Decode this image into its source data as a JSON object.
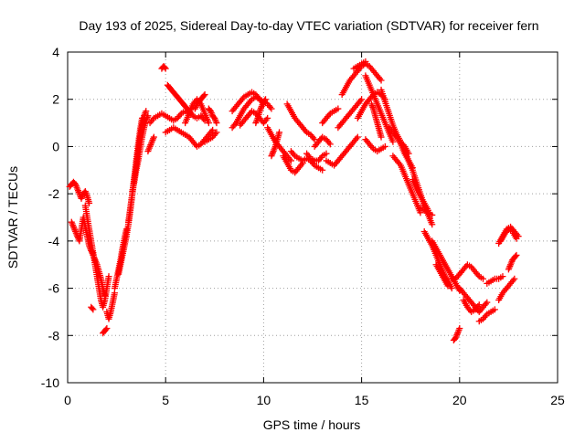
{
  "chart_data": {
    "type": "scatter",
    "title": "Day 193 of 2025, Sidereal Day-to-day VTEC variation (SDTVAR) for receiver fern",
    "xlabel": "GPS time / hours",
    "ylabel": "SDTVAR / TECUs",
    "xlim": [
      0,
      25
    ],
    "ylim": [
      -10,
      4
    ],
    "xticks": [
      "0",
      "5",
      "10",
      "15",
      "20",
      "25"
    ],
    "yticks": [
      "-10",
      "-8",
      "-6",
      "-4",
      "-2",
      "0",
      "2",
      "4"
    ],
    "grid": true,
    "marker": "plus",
    "colors": {
      "series": "#ff0000",
      "grid": "#a0a0a0",
      "axis": "#000000"
    },
    "segments": [
      {
        "x": [
          0.1,
          0.2,
          0.3,
          0.4,
          0.5,
          0.6,
          0.7,
          0.8,
          0.9,
          1.0,
          1.1
        ],
        "y": [
          -1.7,
          -1.6,
          -1.5,
          -1.6,
          -1.8,
          -2.0,
          -2.2,
          -2.0,
          -1.9,
          -2.1,
          -2.4
        ]
      },
      {
        "x": [
          0.2,
          0.3,
          0.4,
          0.5,
          0.6,
          0.7,
          0.8,
          0.9,
          1.0,
          1.1,
          1.2,
          1.3
        ],
        "y": [
          -3.2,
          -3.4,
          -3.6,
          -3.8,
          -4.0,
          -3.5,
          -3.0,
          -3.4,
          -3.8,
          -4.2,
          -4.4,
          -4.5
        ]
      },
      {
        "x": [
          0.9,
          1.0,
          1.1,
          1.2,
          1.3,
          1.4,
          1.5,
          1.6,
          1.7,
          1.8,
          1.9,
          2.0,
          2.1
        ],
        "y": [
          -2.5,
          -3.0,
          -3.5,
          -4.0,
          -4.5,
          -5.0,
          -5.5,
          -6.0,
          -6.5,
          -6.8,
          -6.5,
          -6.0,
          -5.5
        ]
      },
      {
        "x": [
          1.2,
          1.3,
          1.4,
          1.5,
          1.6,
          1.7,
          1.8,
          1.9
        ],
        "y": [
          -4.4,
          -4.6,
          -4.8,
          -5.0,
          -5.3,
          -5.6,
          -6.0,
          -6.3
        ]
      },
      {
        "x": [
          1.2,
          1.3
        ],
        "y": [
          -6.8,
          -6.9
        ]
      },
      {
        "x": [
          1.8,
          1.9,
          2.0
        ],
        "y": [
          -7.9,
          -7.8,
          -7.7
        ]
      },
      {
        "x": [
          2.0,
          2.1,
          2.2,
          2.3,
          2.4
        ],
        "y": [
          -7.0,
          -7.3,
          -7.0,
          -6.6,
          -6.2
        ]
      },
      {
        "x": [
          2.4,
          2.5,
          2.6,
          2.7,
          2.8,
          2.9,
          3.0
        ],
        "y": [
          -6.0,
          -5.6,
          -5.2,
          -4.8,
          -4.3,
          -3.9,
          -3.5
        ]
      },
      {
        "x": [
          2.6,
          2.7,
          2.8,
          2.9,
          3.0,
          3.1,
          3.2,
          3.3,
          3.4,
          3.5,
          3.6,
          3.7,
          3.8
        ],
        "y": [
          -5.4,
          -5.0,
          -4.6,
          -4.2,
          -3.8,
          -3.3,
          -2.7,
          -2.0,
          -1.3,
          -0.6,
          0.1,
          0.7,
          1.2
        ]
      },
      {
        "x": [
          3.1,
          3.2,
          3.3,
          3.4,
          3.5,
          3.6,
          3.7,
          3.8,
          3.9,
          4.0
        ],
        "y": [
          -3.2,
          -2.6,
          -2.0,
          -1.4,
          -0.8,
          -0.2,
          0.4,
          0.9,
          1.3,
          1.5
        ]
      },
      {
        "x": [
          3.3,
          3.4,
          3.5,
          3.6,
          3.7,
          3.8,
          3.9,
          4.0,
          4.1
        ],
        "y": [
          -1.9,
          -1.5,
          -1.0,
          -0.6,
          -0.1,
          0.4,
          0.8,
          1.1,
          1.3
        ]
      },
      {
        "x": [
          4.1,
          4.2,
          4.3,
          4.4
        ],
        "y": [
          -0.2,
          0.0,
          0.2,
          0.4
        ]
      },
      {
        "x": [
          4.2,
          4.4,
          4.6,
          4.8,
          5.0,
          5.2,
          5.4,
          5.6,
          5.8,
          6.0,
          6.2,
          6.4,
          6.6,
          6.8,
          7.0
        ],
        "y": [
          1.0,
          1.2,
          1.3,
          1.4,
          1.3,
          1.2,
          1.1,
          1.2,
          1.4,
          1.5,
          1.4,
          1.3,
          1.2,
          1.3,
          1.1
        ]
      },
      {
        "x": [
          4.8,
          4.9,
          5.0
        ],
        "y": [
          3.3,
          3.4,
          3.3
        ]
      },
      {
        "x": [
          5.1,
          5.2,
          5.3,
          5.4,
          5.5,
          5.6,
          5.7,
          5.8,
          5.9,
          6.0,
          6.1,
          6.2,
          6.3
        ],
        "y": [
          2.6,
          2.5,
          2.4,
          2.3,
          2.2,
          2.1,
          2.0,
          1.9,
          1.8,
          1.7,
          1.6,
          1.5,
          1.4
        ]
      },
      {
        "x": [
          5.0,
          5.2,
          5.4,
          5.6,
          5.8,
          6.0,
          6.2,
          6.4,
          6.6,
          6.8,
          7.0,
          7.2,
          7.4
        ],
        "y": [
          0.6,
          0.7,
          0.8,
          0.7,
          0.6,
          0.5,
          0.4,
          0.2,
          0.0,
          0.1,
          0.3,
          0.5,
          0.7
        ]
      },
      {
        "x": [
          6.0,
          6.2,
          6.4,
          6.6,
          6.8,
          7.0,
          7.2
        ],
        "y": [
          1.0,
          1.4,
          1.8,
          2.0,
          1.8,
          1.4,
          1.0
        ]
      },
      {
        "x": [
          6.5,
          6.6,
          6.7,
          6.8,
          6.9,
          7.0
        ],
        "y": [
          1.6,
          1.8,
          1.9,
          2.0,
          2.1,
          2.2
        ]
      },
      {
        "x": [
          7.2,
          7.3,
          7.4,
          7.5,
          7.6
        ],
        "y": [
          1.6,
          1.5,
          1.3,
          1.2,
          1.0
        ]
      },
      {
        "x": [
          7.0,
          7.2,
          7.4,
          7.6
        ],
        "y": [
          0.2,
          0.3,
          0.4,
          0.6
        ]
      },
      {
        "x": [
          8.4,
          8.6,
          8.8,
          9.0,
          9.2,
          9.4,
          9.6,
          9.8,
          10.0,
          10.2,
          10.4
        ],
        "y": [
          0.8,
          1.0,
          1.3,
          1.6,
          1.8,
          2.0,
          2.1,
          2.0,
          1.9,
          1.8,
          1.6
        ]
      },
      {
        "x": [
          8.4,
          8.6,
          8.8,
          9.0,
          9.2,
          9.4,
          9.6,
          9.8,
          10.0
        ],
        "y": [
          1.5,
          1.7,
          1.9,
          2.1,
          2.2,
          2.3,
          2.2,
          2.0,
          1.8
        ]
      },
      {
        "x": [
          8.8,
          9.0,
          9.2,
          9.4,
          9.6,
          9.8,
          10.0,
          10.2
        ],
        "y": [
          0.9,
          1.1,
          1.3,
          1.5,
          1.4,
          1.2,
          1.0,
          1.2
        ]
      },
      {
        "x": [
          9.6,
          9.7,
          9.8,
          9.9,
          10.0,
          10.1
        ],
        "y": [
          1.0,
          1.2,
          1.5,
          1.7,
          1.9,
          2.0
        ]
      },
      {
        "x": [
          10.2,
          10.4,
          10.6,
          10.8,
          11.0,
          11.2,
          11.4
        ],
        "y": [
          0.8,
          0.5,
          0.2,
          0.0,
          -0.2,
          -0.4,
          -0.6
        ]
      },
      {
        "x": [
          10.4,
          10.5,
          10.6,
          10.7,
          10.8
        ],
        "y": [
          -0.4,
          -0.2,
          0.0,
          0.3,
          0.6
        ]
      },
      {
        "x": [
          11.0,
          11.2,
          11.4,
          11.6,
          11.8,
          12.0
        ],
        "y": [
          -0.4,
          -0.7,
          -1.0,
          -1.1,
          -0.9,
          -0.7
        ]
      },
      {
        "x": [
          11.2,
          11.4,
          11.6,
          11.8,
          12.0,
          12.2,
          12.4,
          12.6
        ],
        "y": [
          1.8,
          1.5,
          1.2,
          1.0,
          0.8,
          0.6,
          0.5,
          0.3
        ]
      },
      {
        "x": [
          11.4,
          11.6,
          11.8,
          12.0,
          12.2,
          12.4,
          12.6,
          12.8,
          13.0
        ],
        "y": [
          -0.2,
          -0.4,
          -0.5,
          -0.6,
          -0.5,
          -0.6,
          -0.8,
          -0.9,
          -1.0
        ]
      },
      {
        "x": [
          12.2,
          12.4,
          12.6,
          12.8,
          13.0,
          13.2
        ],
        "y": [
          -0.3,
          -0.5,
          -0.6,
          -0.6,
          -0.4,
          -0.3
        ]
      },
      {
        "x": [
          12.6,
          12.8,
          13.0,
          13.2,
          13.4
        ],
        "y": [
          0.0,
          0.2,
          0.4,
          0.3,
          0.1
        ]
      },
      {
        "x": [
          13.0,
          13.2,
          13.4,
          13.6,
          13.8
        ],
        "y": [
          1.0,
          1.2,
          1.4,
          1.5,
          1.6
        ]
      },
      {
        "x": [
          13.2,
          13.4,
          13.6,
          13.8,
          14.0,
          14.2,
          14.4,
          14.6,
          14.8
        ],
        "y": [
          -0.6,
          -0.7,
          -0.8,
          -0.6,
          -0.4,
          -0.2,
          0.0,
          0.2,
          0.4
        ]
      },
      {
        "x": [
          13.8,
          14.0,
          14.2,
          14.4,
          14.6,
          14.8,
          15.0
        ],
        "y": [
          0.8,
          1.0,
          1.2,
          1.4,
          1.6,
          1.8,
          2.0
        ]
      },
      {
        "x": [
          14.0,
          14.2,
          14.4,
          14.6,
          14.8,
          15.0,
          15.2,
          15.4,
          15.6,
          15.8,
          16.0
        ],
        "y": [
          2.2,
          2.5,
          2.8,
          3.0,
          3.2,
          3.4,
          3.5,
          3.4,
          3.2,
          3.0,
          2.8
        ]
      },
      {
        "x": [
          14.6,
          14.8,
          15.0,
          15.2
        ],
        "y": [
          3.3,
          3.4,
          3.5,
          3.6
        ]
      },
      {
        "x": [
          14.8,
          15.0,
          15.2,
          15.4,
          15.6,
          15.8,
          16.0,
          16.2
        ],
        "y": [
          1.2,
          1.5,
          1.8,
          2.0,
          2.2,
          2.3,
          2.2,
          2.0
        ]
      },
      {
        "x": [
          15.2,
          15.4,
          15.6,
          15.8,
          16.0,
          16.2,
          16.4,
          16.6
        ],
        "y": [
          3.0,
          2.6,
          2.2,
          1.8,
          1.4,
          1.0,
          0.6,
          0.2
        ]
      },
      {
        "x": [
          15.5,
          15.6,
          15.7,
          15.8,
          15.9,
          16.0
        ],
        "y": [
          1.8,
          1.6,
          1.3,
          1.0,
          0.7,
          0.4
        ]
      },
      {
        "x": [
          15.2,
          15.4,
          15.6,
          15.8,
          16.0,
          16.2
        ],
        "y": [
          0.3,
          0.1,
          -0.1,
          -0.2,
          -0.1,
          0.0
        ]
      },
      {
        "x": [
          16.0,
          16.2,
          16.4,
          16.6,
          16.8,
          17.0,
          17.2,
          17.4
        ],
        "y": [
          2.4,
          1.9,
          1.4,
          0.9,
          0.5,
          0.2,
          0.0,
          -0.3
        ]
      },
      {
        "x": [
          16.4,
          16.6,
          16.8,
          17.0,
          17.2,
          17.4,
          17.6
        ],
        "y": [
          0.8,
          0.6,
          0.4,
          0.1,
          -0.3,
          -0.6,
          -0.9
        ]
      },
      {
        "x": [
          16.6,
          16.8,
          17.0,
          17.2,
          17.4,
          17.6,
          17.8,
          18.0
        ],
        "y": [
          -0.4,
          -0.6,
          -0.8,
          -1.2,
          -1.6,
          -2.0,
          -2.4,
          -2.8
        ]
      },
      {
        "x": [
          17.2,
          17.4,
          17.6,
          17.8,
          18.0,
          18.2,
          18.4,
          18.6
        ],
        "y": [
          -0.2,
          -0.6,
          -1.0,
          -1.5,
          -2.0,
          -2.5,
          -2.9,
          -3.3
        ]
      },
      {
        "x": [
          17.6,
          17.8,
          18.0,
          18.2,
          18.4
        ],
        "y": [
          -1.4,
          -1.8,
          -2.1,
          -2.4,
          -2.7
        ]
      },
      {
        "x": [
          18.0,
          18.2,
          18.4,
          18.6
        ],
        "y": [
          -2.6,
          -2.7,
          -2.8,
          -2.9
        ]
      },
      {
        "x": [
          18.2,
          18.4,
          18.6,
          18.8,
          19.0,
          19.2,
          19.4,
          19.6
        ],
        "y": [
          -3.6,
          -3.9,
          -4.2,
          -4.6,
          -5.0,
          -5.4,
          -5.7,
          -6.0
        ]
      },
      {
        "x": [
          18.6,
          18.8,
          19.0,
          19.2,
          19.4,
          19.6,
          19.8,
          20.0
        ],
        "y": [
          -4.0,
          -4.3,
          -4.6,
          -4.9,
          -5.2,
          -5.5,
          -5.8,
          -6.1
        ]
      },
      {
        "x": [
          18.8,
          19.0,
          19.2,
          19.4
        ],
        "y": [
          -5.0,
          -5.3,
          -5.6,
          -5.9
        ]
      },
      {
        "x": [
          19.6,
          19.8,
          20.0,
          20.2,
          20.4,
          20.6,
          20.8,
          21.0,
          21.2
        ],
        "y": [
          -5.6,
          -5.6,
          -5.4,
          -5.2,
          -5.0,
          -5.1,
          -5.3,
          -5.5,
          -5.6
        ]
      },
      {
        "x": [
          19.7,
          19.8,
          19.9,
          20.0
        ],
        "y": [
          -8.2,
          -8.1,
          -7.9,
          -7.7
        ]
      },
      {
        "x": [
          20.0,
          20.2,
          20.4,
          20.6,
          20.8,
          21.0,
          21.2,
          21.4
        ],
        "y": [
          -6.0,
          -6.2,
          -6.4,
          -6.6,
          -6.8,
          -7.0,
          -6.8,
          -6.6
        ]
      },
      {
        "x": [
          20.2,
          20.4,
          20.6,
          20.8,
          21.0
        ],
        "y": [
          -6.5,
          -6.8,
          -7.0,
          -6.9,
          -6.7
        ]
      },
      {
        "x": [
          21.0,
          21.2,
          21.4,
          21.6,
          21.8
        ],
        "y": [
          -7.4,
          -7.3,
          -7.1,
          -7.0,
          -6.9
        ]
      },
      {
        "x": [
          21.4,
          21.6,
          21.8,
          22.0,
          22.2
        ],
        "y": [
          -5.8,
          -5.7,
          -5.6,
          -5.6,
          -5.5
        ]
      },
      {
        "x": [
          22.0,
          22.2,
          22.4,
          22.6,
          22.8
        ],
        "y": [
          -6.5,
          -6.2,
          -6.0,
          -5.8,
          -5.6
        ]
      },
      {
        "x": [
          22.0,
          22.2,
          22.4,
          22.6,
          22.8,
          23.0
        ],
        "y": [
          -4.1,
          -3.8,
          -3.5,
          -3.4,
          -3.6,
          -3.8
        ]
      },
      {
        "x": [
          22.1,
          22.3,
          22.5,
          22.7,
          22.9
        ],
        "y": [
          -4.0,
          -3.7,
          -3.5,
          -3.6,
          -3.9
        ]
      },
      {
        "x": [
          22.5,
          22.6,
          22.7,
          22.8,
          22.9
        ],
        "y": [
          -5.2,
          -5.0,
          -4.8,
          -4.7,
          -4.6
        ]
      }
    ]
  }
}
